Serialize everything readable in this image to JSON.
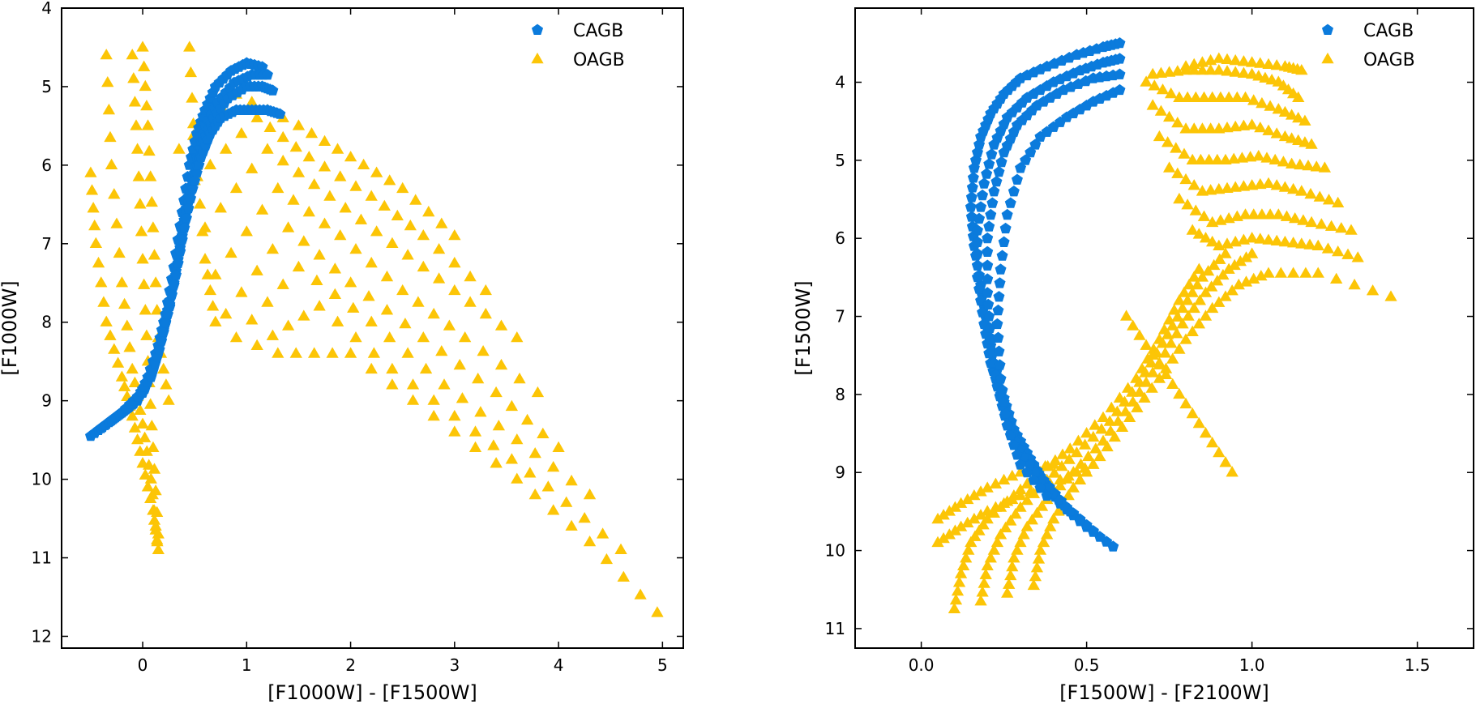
{
  "colors": {
    "cagb": "#0b7bdc",
    "oagb": "#fcc506",
    "axis": "#000000",
    "background": "#ffffff"
  },
  "chart_data": [
    {
      "type": "scatter",
      "title": "",
      "xlabel": "[F1000W] - [F1500W]",
      "ylabel": "[F1000W]",
      "xlim": [
        -0.78,
        5.2
      ],
      "ylim": [
        12.15,
        4.0
      ],
      "y_inverted": true,
      "xticks": [
        0,
        1,
        2,
        3,
        4,
        5
      ],
      "yticks": [
        4,
        5,
        6,
        7,
        8,
        9,
        10,
        11,
        12
      ],
      "xtick_labels": [
        "0",
        "1",
        "2",
        "3",
        "4",
        "5"
      ],
      "ytick_labels": [
        "4",
        "5",
        "6",
        "7",
        "8",
        "9",
        "10",
        "11",
        "12"
      ],
      "grid": false,
      "legend": {
        "location": "top-right",
        "entries": [
          {
            "label": "CAGB",
            "marker": "pentagon"
          },
          {
            "label": "OAGB",
            "marker": "triangle"
          }
        ]
      },
      "series": [
        {
          "name": "CAGB",
          "marker": "pentagon",
          "tracks": [
            {
              "x": [
                -0.5,
                -0.35,
                -0.2,
                -0.05,
                0.05,
                0.15,
                0.22,
                0.3,
                0.38,
                0.45,
                0.52,
                0.6,
                0.7,
                0.85,
                1.0,
                1.15
              ],
              "y": [
                9.45,
                9.3,
                9.15,
                9.0,
                8.7,
                8.3,
                7.9,
                7.3,
                6.6,
                6.0,
                5.6,
                5.3,
                5.0,
                4.8,
                4.7,
                4.75
              ]
            },
            {
              "x": [
                -0.4,
                -0.25,
                -0.1,
                0.02,
                0.12,
                0.2,
                0.28,
                0.36,
                0.44,
                0.52,
                0.6,
                0.72,
                0.88,
                1.05,
                1.2
              ],
              "y": [
                9.35,
                9.2,
                9.05,
                8.85,
                8.5,
                8.1,
                7.6,
                7.0,
                6.4,
                5.9,
                5.5,
                5.2,
                4.95,
                4.85,
                4.85
              ]
            },
            {
              "x": [
                -0.3,
                -0.15,
                0.0,
                0.1,
                0.18,
                0.26,
                0.34,
                0.42,
                0.5,
                0.58,
                0.68,
                0.82,
                1.0,
                1.15,
                1.25
              ],
              "y": [
                9.25,
                9.1,
                8.9,
                8.6,
                8.2,
                7.8,
                7.2,
                6.6,
                6.1,
                5.7,
                5.4,
                5.15,
                5.0,
                5.0,
                5.05
              ]
            },
            {
              "x": [
                -0.2,
                -0.05,
                0.08,
                0.16,
                0.24,
                0.32,
                0.4,
                0.48,
                0.56,
                0.65,
                0.75,
                0.9,
                1.05,
                1.2,
                1.32
              ],
              "y": [
                9.15,
                8.95,
                8.7,
                8.35,
                7.9,
                7.4,
                6.8,
                6.3,
                5.9,
                5.6,
                5.4,
                5.3,
                5.3,
                5.3,
                5.35
              ]
            }
          ]
        },
        {
          "name": "OAGB",
          "marker": "triangle",
          "tracks": [
            {
              "x": [
                -0.5,
                -0.45,
                -0.35,
                -0.2,
                -0.1,
                0.0,
                0.1,
                0.15
              ],
              "y": [
                6.1,
                7.0,
                8.0,
                8.7,
                9.2,
                9.8,
                10.4,
                10.9
              ]
            },
            {
              "x": [
                -0.35,
                -0.3,
                -0.2,
                -0.1,
                0.0,
                0.08,
                0.14
              ],
              "y": [
                4.6,
                6.0,
                7.5,
                8.6,
                9.3,
                10.0,
                10.8
              ]
            },
            {
              "x": [
                -0.1,
                -0.05,
                0.0,
                0.05,
                0.1,
                0.15
              ],
              "y": [
                4.6,
                5.8,
                7.2,
                8.5,
                9.6,
                10.7
              ]
            },
            {
              "x": [
                0.0,
                0.05,
                0.1,
                0.15,
                0.25
              ],
              "y": [
                4.5,
                5.5,
                6.8,
                8.2,
                9.0
              ]
            },
            {
              "x": [
                0.45,
                0.5,
                0.6,
                0.7
              ],
              "y": [
                4.5,
                5.8,
                7.2,
                8.0
              ]
            },
            {
              "x": [
                0.35,
                0.9,
                1.5,
                2.0,
                2.5,
                3.0
              ],
              "y": [
                5.8,
                5.1,
                5.5,
                5.9,
                6.3,
                6.9
              ]
            },
            {
              "x": [
                0.5,
                1.1,
                1.6,
                2.2,
                2.7,
                3.3
              ],
              "y": [
                6.2,
                5.4,
                5.9,
                6.4,
                6.9,
                7.6
              ]
            },
            {
              "x": [
                0.6,
                1.2,
                1.8,
                2.4,
                3.0,
                3.6
              ],
              "y": [
                6.8,
                5.8,
                6.4,
                7.0,
                7.6,
                8.2
              ]
            },
            {
              "x": [
                0.7,
                1.3,
                1.9,
                2.5,
                3.1,
                3.8
              ],
              "y": [
                7.4,
                6.3,
                6.9,
                7.6,
                8.2,
                8.9
              ]
            },
            {
              "x": [
                0.8,
                1.4,
                2.0,
                2.7,
                3.4,
                4.0
              ],
              "y": [
                7.9,
                6.8,
                7.5,
                8.2,
                8.9,
                9.6
              ]
            },
            {
              "x": [
                0.9,
                1.5,
                2.2,
                2.9,
                3.6,
                4.3
              ],
              "y": [
                8.2,
                7.3,
                8.0,
                8.8,
                9.5,
                10.2
              ]
            },
            {
              "x": [
                1.1,
                1.7,
                2.4,
                3.2,
                3.9,
                4.6
              ],
              "y": [
                8.3,
                7.8,
                8.6,
                9.4,
                10.1,
                10.9
              ]
            },
            {
              "x": [
                1.3,
                2.0,
                2.8,
                3.6,
                4.3,
                4.95
              ],
              "y": [
                8.4,
                8.4,
                9.2,
                10.0,
                10.8,
                11.7
              ]
            }
          ]
        }
      ]
    },
    {
      "type": "scatter",
      "title": "",
      "xlabel": "[F1500W] - [F2100W]",
      "ylabel": "[F1500W]",
      "xlim": [
        -0.2,
        1.67
      ],
      "ylim": [
        11.25,
        3.05
      ],
      "y_inverted": true,
      "xticks": [
        0.0,
        0.5,
        1.0,
        1.5
      ],
      "yticks": [
        4,
        5,
        6,
        7,
        8,
        9,
        10,
        11
      ],
      "xtick_labels": [
        "0.0",
        "0.5",
        "1.0",
        "1.5"
      ],
      "ytick_labels": [
        "4",
        "5",
        "6",
        "7",
        "8",
        "9",
        "10",
        "11"
      ],
      "grid": false,
      "legend": {
        "location": "top-right",
        "entries": [
          {
            "label": "CAGB",
            "marker": "pentagon"
          },
          {
            "label": "OAGB",
            "marker": "triangle"
          }
        ]
      },
      "series": [
        {
          "name": "CAGB",
          "marker": "pentagon",
          "tracks": [
            {
              "x": [
                0.58,
                0.5,
                0.42,
                0.36,
                0.32,
                0.28,
                0.25,
                0.22,
                0.2,
                0.18,
                0.16,
                0.15,
                0.16,
                0.18,
                0.21,
                0.25,
                0.3,
                0.38,
                0.47,
                0.55,
                0.6
              ],
              "y": [
                9.95,
                9.7,
                9.4,
                9.05,
                8.75,
                8.45,
                8.05,
                7.6,
                7.15,
                6.6,
                6.1,
                5.6,
                5.1,
                4.7,
                4.4,
                4.15,
                3.95,
                3.8,
                3.65,
                3.55,
                3.5
              ]
            },
            {
              "x": [
                0.52,
                0.44,
                0.37,
                0.31,
                0.27,
                0.24,
                0.21,
                0.19,
                0.17,
                0.17,
                0.19,
                0.22,
                0.26,
                0.32,
                0.4,
                0.48,
                0.55,
                0.6
              ],
              "y": [
                9.75,
                9.45,
                9.1,
                8.75,
                8.4,
                8.0,
                7.6,
                7.1,
                6.5,
                5.9,
                5.3,
                4.8,
                4.45,
                4.2,
                4.0,
                3.85,
                3.75,
                3.7
              ]
            },
            {
              "x": [
                0.45,
                0.38,
                0.31,
                0.26,
                0.23,
                0.21,
                0.2,
                0.2,
                0.22,
                0.25,
                0.29,
                0.35,
                0.43,
                0.52,
                0.6
              ],
              "y": [
                9.5,
                9.2,
                8.8,
                8.4,
                7.9,
                7.3,
                6.7,
                6.0,
                5.4,
                4.9,
                4.55,
                4.3,
                4.1,
                3.95,
                3.9
              ]
            },
            {
              "x": [
                0.38,
                0.3,
                0.26,
                0.24,
                0.23,
                0.24,
                0.26,
                0.3,
                0.36,
                0.44,
                0.52,
                0.6
              ],
              "y": [
                9.3,
                8.9,
                8.4,
                7.8,
                7.1,
                6.4,
                5.7,
                5.1,
                4.7,
                4.45,
                4.25,
                4.1
              ]
            }
          ]
        },
        {
          "name": "OAGB",
          "marker": "triangle",
          "tracks": [
            {
              "x": [
                0.05,
                0.12,
                0.2,
                0.3,
                0.4
              ],
              "y": [
                9.6,
                9.4,
                9.2,
                9.0,
                8.9
              ]
            },
            {
              "x": [
                0.05,
                0.12,
                0.2,
                0.3,
                0.42,
                0.52
              ],
              "y": [
                9.9,
                9.7,
                9.5,
                9.3,
                9.1,
                8.9
              ]
            },
            {
              "x": [
                0.1,
                0.12,
                0.15,
                0.2,
                0.28,
                0.36,
                0.45,
                0.55,
                0.65,
                0.72,
                0.78,
                0.84
              ],
              "y": [
                10.75,
                10.3,
                9.9,
                9.6,
                9.3,
                9.0,
                8.7,
                8.3,
                7.8,
                7.3,
                6.8,
                6.4
              ]
            },
            {
              "x": [
                0.18,
                0.2,
                0.24,
                0.3,
                0.38,
                0.47,
                0.57,
                0.66,
                0.73,
                0.79,
                0.85,
                0.92
              ],
              "y": [
                10.65,
                10.2,
                9.8,
                9.45,
                9.1,
                8.75,
                8.35,
                7.85,
                7.35,
                6.9,
                6.5,
                6.2
              ]
            },
            {
              "x": [
                0.26,
                0.28,
                0.32,
                0.38,
                0.46,
                0.55,
                0.64,
                0.72,
                0.79,
                0.86,
                0.93,
                1.0
              ],
              "y": [
                10.55,
                10.1,
                9.7,
                9.35,
                9.0,
                8.6,
                8.1,
                7.6,
                7.1,
                6.7,
                6.4,
                6.2
              ]
            },
            {
              "x": [
                0.34,
                0.36,
                0.4,
                0.46,
                0.54,
                0.63,
                0.72,
                0.8,
                0.88,
                0.96,
                1.05,
                1.2,
                1.42
              ],
              "y": [
                10.45,
                10.0,
                9.6,
                9.2,
                8.8,
                8.3,
                7.8,
                7.3,
                6.9,
                6.6,
                6.45,
                6.45,
                6.75
              ]
            },
            {
              "x": [
                0.82,
                0.9,
                1.0,
                1.1,
                1.2,
                1.32
              ],
              "y": [
                5.9,
                6.1,
                6.0,
                6.05,
                6.1,
                6.25
              ]
            },
            {
              "x": [
                0.78,
                0.88,
                0.98,
                1.08,
                1.18,
                1.3
              ],
              "y": [
                5.5,
                5.8,
                5.7,
                5.7,
                5.8,
                5.9
              ]
            },
            {
              "x": [
                0.75,
                0.85,
                0.95,
                1.05,
                1.15,
                1.26
              ],
              "y": [
                5.1,
                5.4,
                5.35,
                5.3,
                5.4,
                5.55
              ]
            },
            {
              "x": [
                0.72,
                0.82,
                0.92,
                1.02,
                1.12,
                1.22
              ],
              "y": [
                4.7,
                5.0,
                5.0,
                4.95,
                5.05,
                5.1
              ]
            },
            {
              "x": [
                0.7,
                0.8,
                0.9,
                1.0,
                1.1,
                1.18
              ],
              "y": [
                4.3,
                4.6,
                4.6,
                4.55,
                4.7,
                4.8
              ]
            },
            {
              "x": [
                0.68,
                0.78,
                0.88,
                0.98,
                1.08,
                1.16
              ],
              "y": [
                4.0,
                4.2,
                4.2,
                4.2,
                4.35,
                4.5
              ]
            },
            {
              "x": [
                0.7,
                0.8,
                0.9,
                1.0,
                1.08,
                1.14
              ],
              "y": [
                3.9,
                3.85,
                3.85,
                3.9,
                4.0,
                4.2
              ]
            },
            {
              "x": [
                0.8,
                0.9,
                1.0,
                1.1,
                1.15
              ],
              "y": [
                3.8,
                3.7,
                3.75,
                3.8,
                3.85
              ]
            },
            {
              "x": [
                0.62,
                0.7,
                0.78,
                0.86,
                0.94
              ],
              "y": [
                7.0,
                7.5,
                8.0,
                8.5,
                9.0
              ]
            }
          ]
        }
      ]
    }
  ]
}
